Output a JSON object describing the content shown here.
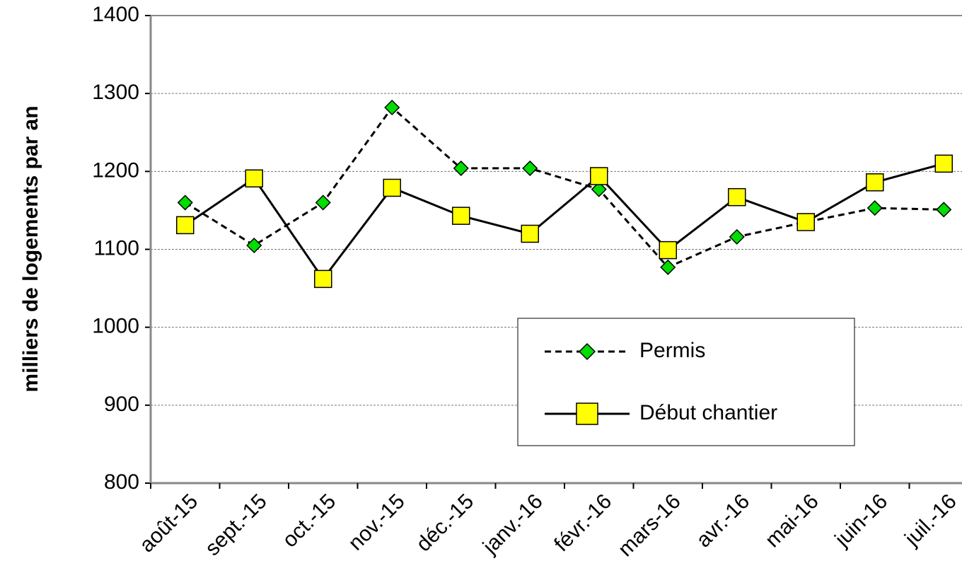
{
  "chart_data": {
    "type": "line",
    "y_label": "milliers de logements par an",
    "categories": [
      "août-15",
      "sept.-15",
      "oct.-15",
      "nov.-15",
      "déc.-15",
      "janv.-16",
      "févr.-16",
      "mars-16",
      "avr.-16",
      "mai-16",
      "juin-16",
      "juil.-16"
    ],
    "series": [
      {
        "name": "Permis",
        "color": "#00dd00",
        "marker": "diamond",
        "dash": true,
        "values": [
          1160,
          1105,
          1160,
          1282,
          1204,
          1204,
          1177,
          1077,
          1116,
          1135,
          1153,
          1151
        ]
      },
      {
        "name": "Début chantier",
        "color": "#ffff00",
        "marker": "square",
        "dash": false,
        "values": [
          1131,
          1191,
          1062,
          1179,
          1143,
          1120,
          1194,
          1099,
          1167,
          1135,
          1186,
          1210
        ]
      }
    ],
    "ylim": [
      800,
      1400
    ],
    "yticks": [
      800,
      900,
      1000,
      1100,
      1200,
      1300,
      1400
    ],
    "grid": true,
    "legend": "bottom-right"
  }
}
